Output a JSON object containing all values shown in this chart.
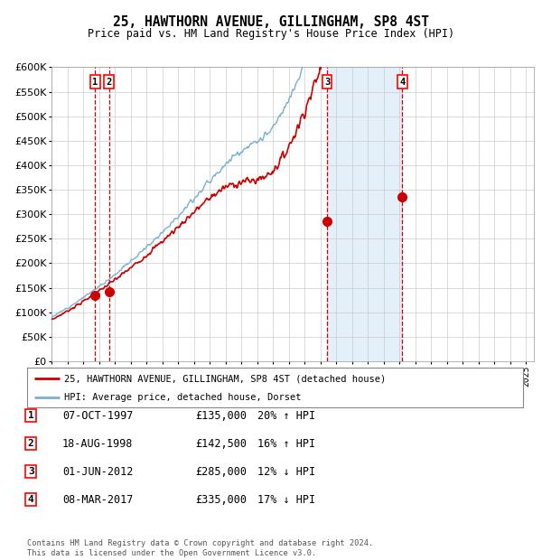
{
  "title": "25, HAWTHORN AVENUE, GILLINGHAM, SP8 4ST",
  "subtitle": "Price paid vs. HM Land Registry's House Price Index (HPI)",
  "ylim": [
    0,
    600000
  ],
  "yticks": [
    0,
    50000,
    100000,
    150000,
    200000,
    250000,
    300000,
    350000,
    400000,
    450000,
    500000,
    550000,
    600000
  ],
  "xlim_start": 1995.0,
  "xlim_end": 2025.5,
  "background_color": "#ffffff",
  "plot_bg_color": "#ffffff",
  "grid_color": "#cccccc",
  "sale_color": "#cc0000",
  "hpi_color": "#7ab0d4",
  "legend_sale": "25, HAWTHORN AVENUE, GILLINGHAM, SP8 4ST (detached house)",
  "legend_hpi": "HPI: Average price, detached house, Dorset",
  "transactions": [
    {
      "num": 1,
      "date_dec": 1997.77,
      "price": 135000,
      "label": "07-OCT-1997",
      "pct": "20%",
      "dir": "↑"
    },
    {
      "num": 2,
      "date_dec": 1998.63,
      "price": 142500,
      "label": "18-AUG-1998",
      "pct": "16%",
      "dir": "↑"
    },
    {
      "num": 3,
      "date_dec": 2012.42,
      "price": 285000,
      "label": "01-JUN-2012",
      "pct": "12%",
      "dir": "↓"
    },
    {
      "num": 4,
      "date_dec": 2017.18,
      "price": 335000,
      "label": "08-MAR-2017",
      "pct": "17%",
      "dir": "↓"
    }
  ],
  "footnote": "Contains HM Land Registry data © Crown copyright and database right 2024.\nThis data is licensed under the Open Government Licence v3.0.",
  "shaded_region": [
    2012.42,
    2017.18
  ]
}
